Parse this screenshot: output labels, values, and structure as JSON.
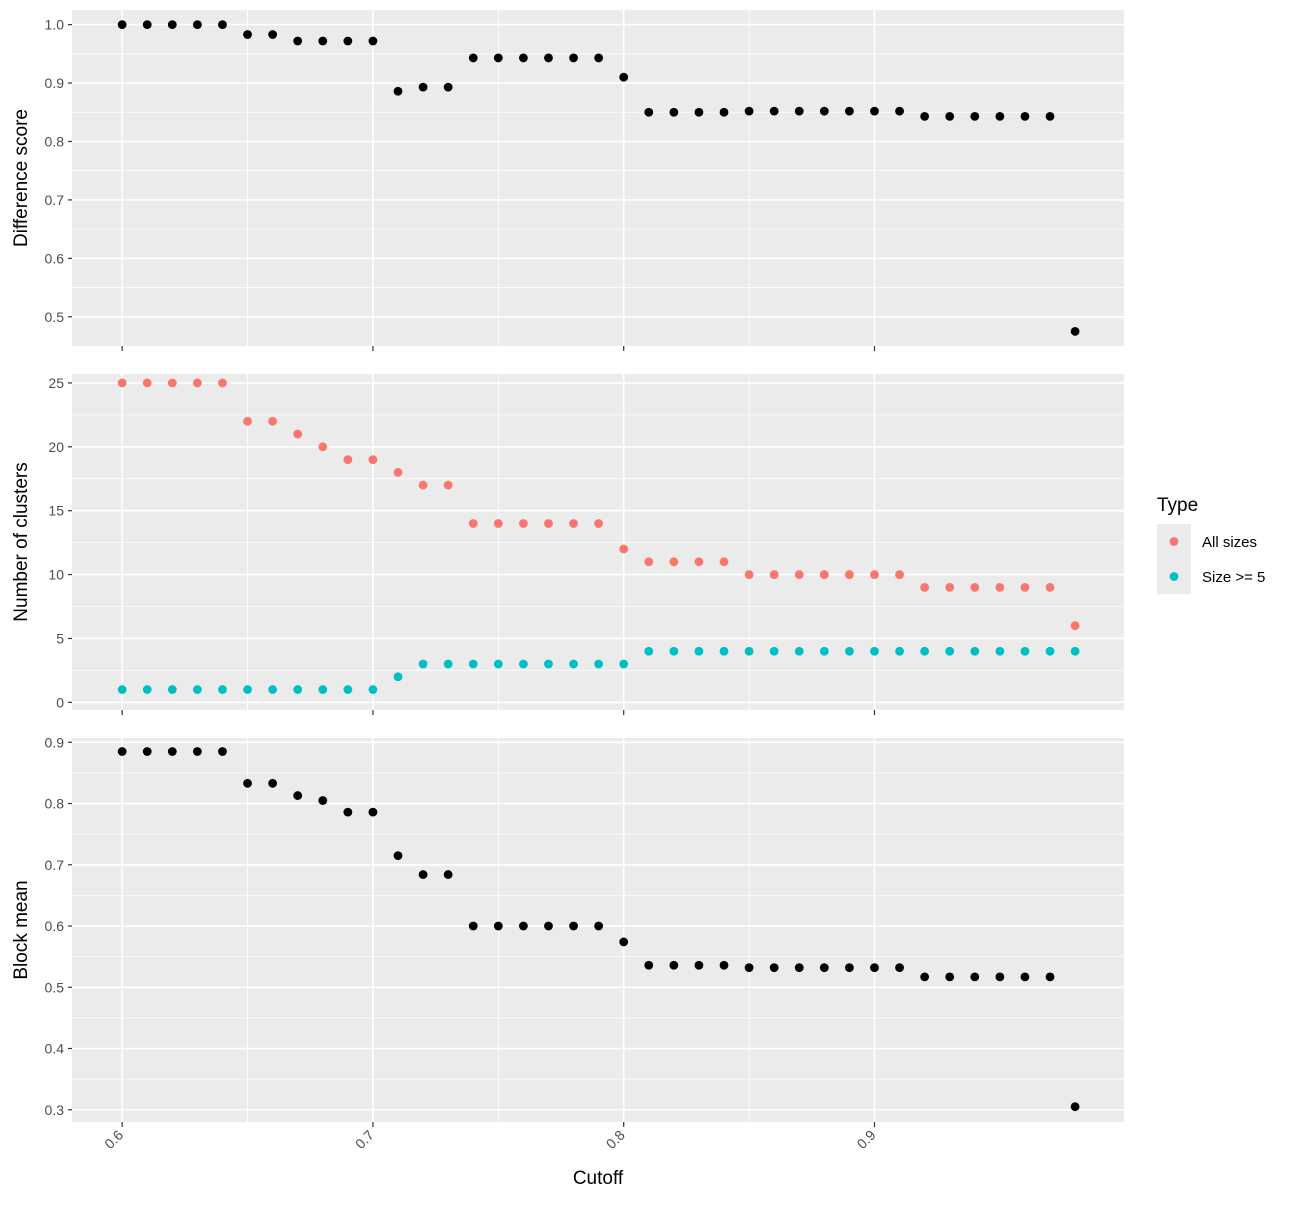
{
  "chart_data": {
    "type": "scatter",
    "x_label": "Cutoff",
    "x_range": [
      0.58,
      0.9995
    ],
    "x_ticks": [
      "0.6",
      "0.7",
      "0.8",
      "0.9"
    ],
    "x_tick_values": [
      0.6,
      0.7,
      0.8,
      0.9
    ],
    "x_tick_angle": -45,
    "x": [
      0.6,
      0.61,
      0.62,
      0.63,
      0.64,
      0.65,
      0.66,
      0.67,
      0.68,
      0.69,
      0.7,
      0.71,
      0.72,
      0.73,
      0.74,
      0.75,
      0.76,
      0.77,
      0.78,
      0.79,
      0.8,
      0.81,
      0.82,
      0.83,
      0.84,
      0.85,
      0.86,
      0.87,
      0.88,
      0.89,
      0.9,
      0.91,
      0.92,
      0.93,
      0.94,
      0.95,
      0.96,
      0.97,
      0.98
    ],
    "grid": true,
    "panels": [
      {
        "y_label": "Difference score",
        "y_range": [
          0.45,
          1.025
        ],
        "y_ticks": [
          "0.5",
          "0.6",
          "0.7",
          "0.8",
          "0.9",
          "1.0"
        ],
        "y_tick_values": [
          0.5,
          0.6,
          0.7,
          0.8,
          0.9,
          1.0
        ],
        "series": [
          {
            "color": "#000000",
            "values": [
              1.0,
              1.0,
              1.0,
              1.0,
              1.0,
              0.983,
              0.983,
              0.972,
              0.972,
              0.972,
              0.972,
              0.886,
              0.893,
              0.893,
              0.943,
              0.943,
              0.943,
              0.943,
              0.943,
              0.943,
              0.91,
              0.85,
              0.85,
              0.85,
              0.85,
              0.852,
              0.852,
              0.852,
              0.852,
              0.852,
              0.852,
              0.852,
              0.843,
              0.843,
              0.843,
              0.843,
              0.843,
              0.843,
              0.475
            ]
          }
        ]
      },
      {
        "y_label": "Number of clusters",
        "y_range": [
          -0.6,
          25.7
        ],
        "y_ticks": [
          "0",
          "5",
          "10",
          "15",
          "20",
          "25"
        ],
        "y_tick_values": [
          0,
          5,
          10,
          15,
          20,
          25
        ],
        "series": [
          {
            "name": "All sizes",
            "color": "#f8766d",
            "values": [
              25,
              25,
              25,
              25,
              25,
              22,
              22,
              21,
              20,
              19,
              19,
              18,
              17,
              17,
              14,
              14,
              14,
              14,
              14,
              14,
              12,
              11,
              11,
              11,
              11,
              10,
              10,
              10,
              10,
              10,
              10,
              10,
              9,
              9,
              9,
              9,
              9,
              9,
              6
            ]
          },
          {
            "name": "Size >= 5",
            "color": "#00bfc4",
            "values": [
              1,
              1,
              1,
              1,
              1,
              1,
              1,
              1,
              1,
              1,
              1,
              2,
              3,
              3,
              3,
              3,
              3,
              3,
              3,
              3,
              3,
              4,
              4,
              4,
              4,
              4,
              4,
              4,
              4,
              4,
              4,
              4,
              4,
              4,
              4,
              4,
              4,
              4,
              4
            ]
          }
        ]
      },
      {
        "y_label": "Block mean",
        "y_range": [
          0.28,
          0.907
        ],
        "y_ticks": [
          "0.3",
          "0.4",
          "0.5",
          "0.6",
          "0.7",
          "0.8",
          "0.9"
        ],
        "y_tick_values": [
          0.3,
          0.4,
          0.5,
          0.6,
          0.7,
          0.8,
          0.9
        ],
        "series": [
          {
            "color": "#000000",
            "values": [
              0.885,
              0.885,
              0.885,
              0.885,
              0.885,
              0.833,
              0.833,
              0.813,
              0.805,
              0.786,
              0.786,
              0.715,
              0.684,
              0.684,
              0.6,
              0.6,
              0.6,
              0.6,
              0.6,
              0.6,
              0.574,
              0.536,
              0.536,
              0.536,
              0.536,
              0.532,
              0.532,
              0.532,
              0.532,
              0.532,
              0.532,
              0.532,
              0.517,
              0.517,
              0.517,
              0.517,
              0.517,
              0.517,
              0.305
            ]
          }
        ]
      }
    ],
    "legend": {
      "title": "Type",
      "position": "right",
      "items": [
        {
          "label": "All sizes",
          "color": "#f8766d"
        },
        {
          "label": "Size >= 5",
          "color": "#00bfc4"
        }
      ]
    }
  }
}
